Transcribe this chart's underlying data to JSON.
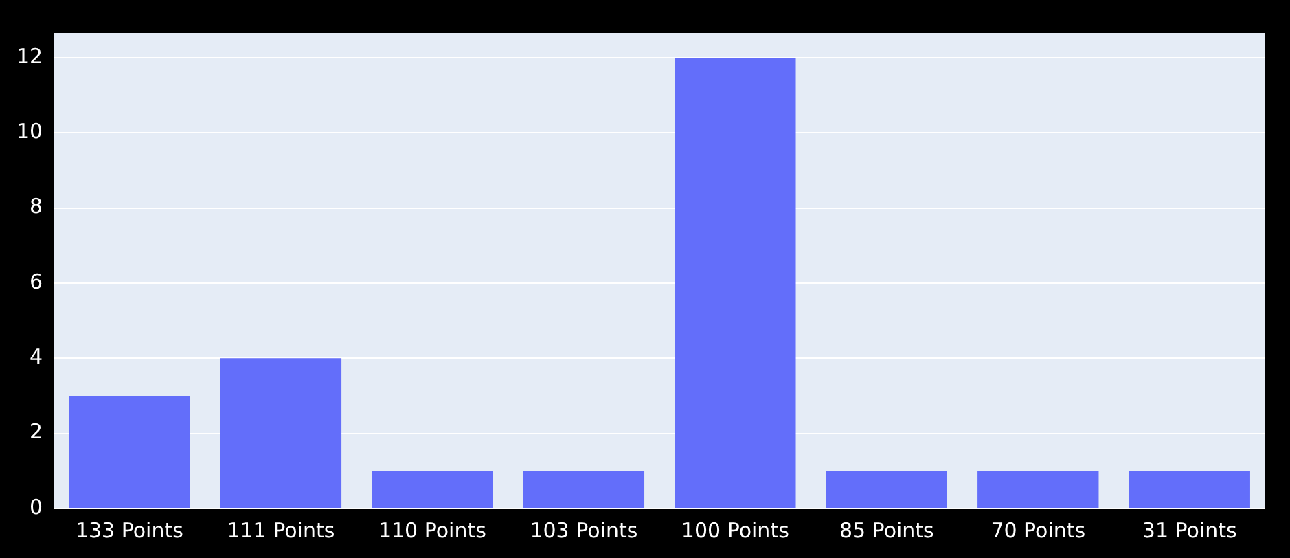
{
  "chart_data": {
    "type": "bar",
    "categories": [
      "133 Points",
      "111 Points",
      "110 Points",
      "103 Points",
      "100 Points",
      "85 Points",
      "70 Points",
      "31 Points"
    ],
    "values": [
      3,
      4,
      1,
      1,
      12,
      1,
      1,
      1
    ],
    "color": "#636efa",
    "ylim": [
      0,
      12.66
    ],
    "yticks": [
      0,
      2,
      4,
      6,
      8,
      10,
      12
    ],
    "grid": "y"
  }
}
